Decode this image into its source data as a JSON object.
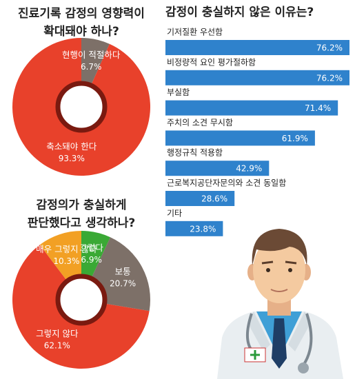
{
  "chart_data": [
    {
      "type": "pie",
      "title": [
        "진료기록 감정의 영향력이",
        "확대돼야 하나?"
      ],
      "categories": [
        "현행이 적절하다",
        "축소돼야 한다"
      ],
      "values": [
        6.7,
        93.3
      ],
      "value_labels": [
        "6.7%",
        "93.3%"
      ],
      "colors": [
        "#7d7068",
        "#e8412b"
      ]
    },
    {
      "type": "pie",
      "title": [
        "감정의가 충실하게",
        "판단했다고 생각하나?"
      ],
      "categories": [
        "그렇다",
        "보통",
        "그렇지 않다",
        "매우 그렇지 않다"
      ],
      "values": [
        6.9,
        20.7,
        62.1,
        10.3
      ],
      "value_labels": [
        "6.9%",
        "20.7%",
        "62.1%",
        "10.3%"
      ],
      "colors": [
        "#3aa935",
        "#7d7068",
        "#e8412b",
        "#f2a024"
      ]
    },
    {
      "type": "bar",
      "orientation": "horizontal",
      "title": "감정이 충실하지 않은 이유는?",
      "categories": [
        "기저질환 우선함",
        "비정량적 요인 평가절하함",
        "부실함",
        "주치의 소견 무시함",
        "행정규칙 적용함",
        "근로복지공단자문의와 소견 동일함",
        "기타"
      ],
      "values": [
        76.2,
        76.2,
        71.4,
        61.9,
        42.9,
        28.6,
        23.8
      ],
      "value_labels": [
        "76.2%",
        "76.2%",
        "71.4%",
        "61.9%",
        "42.9%",
        "28.6%",
        "23.8%"
      ],
      "color": "#2f82cc"
    }
  ]
}
